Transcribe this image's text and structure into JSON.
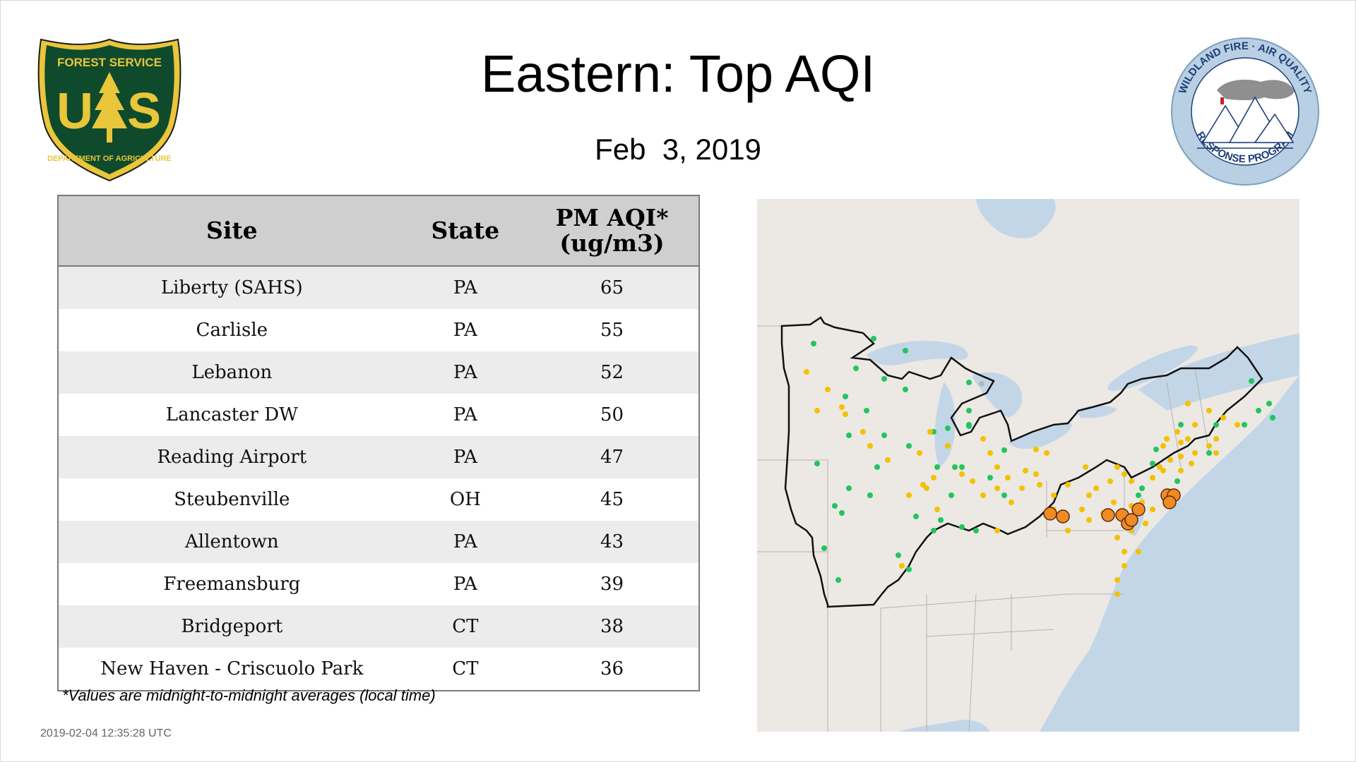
{
  "header": {
    "title": "Eastern: Top AQI",
    "date": "Feb  3, 2019"
  },
  "logos": {
    "forest_service": {
      "top_text": "FOREST SERVICE",
      "letters": "U S",
      "bottom_text": "DEPARTMENT OF AGRICULTURE",
      "colors": {
        "shield": "#0f4a2c",
        "gold": "#e9c63a"
      }
    },
    "wildland": {
      "top_text": "WILDLAND FIRE · AIR QUALITY",
      "bottom_text": "RESPONSE PROGRAM",
      "colors": {
        "ring": "#b9cfe3",
        "text": "#1e3f78"
      }
    }
  },
  "table": {
    "headers": {
      "site": "Site",
      "state": "State",
      "aqi_line1": "PM AQI*",
      "aqi_line2": "(ug/m3)"
    },
    "rows": [
      {
        "site": "Liberty (SAHS)",
        "state": "PA",
        "aqi": "65"
      },
      {
        "site": "Carlisle",
        "state": "PA",
        "aqi": "55"
      },
      {
        "site": "Lebanon",
        "state": "PA",
        "aqi": "52"
      },
      {
        "site": "Lancaster DW",
        "state": "PA",
        "aqi": "50"
      },
      {
        "site": "Reading Airport",
        "state": "PA",
        "aqi": "47"
      },
      {
        "site": "Steubenville",
        "state": "OH",
        "aqi": "45"
      },
      {
        "site": "Allentown",
        "state": "PA",
        "aqi": "43"
      },
      {
        "site": "Freemansburg",
        "state": "PA",
        "aqi": "39"
      },
      {
        "site": "Bridgeport",
        "state": "CT",
        "aqi": "38"
      },
      {
        "site": "New Haven - Criscuolo Park",
        "state": "CT",
        "aqi": "36"
      }
    ]
  },
  "footnote": "*Values are midnight-to-midnight averages (local time)",
  "timestamp": "2019-02-04 12:35:28 UTC",
  "map": {
    "colors": {
      "land": "#ece8e4",
      "water": "#c3d6e8",
      "good": "#22c55e",
      "moderate": "#f2c200",
      "usg": "#f08a24",
      "gray": "#b8b8b8"
    }
  }
}
